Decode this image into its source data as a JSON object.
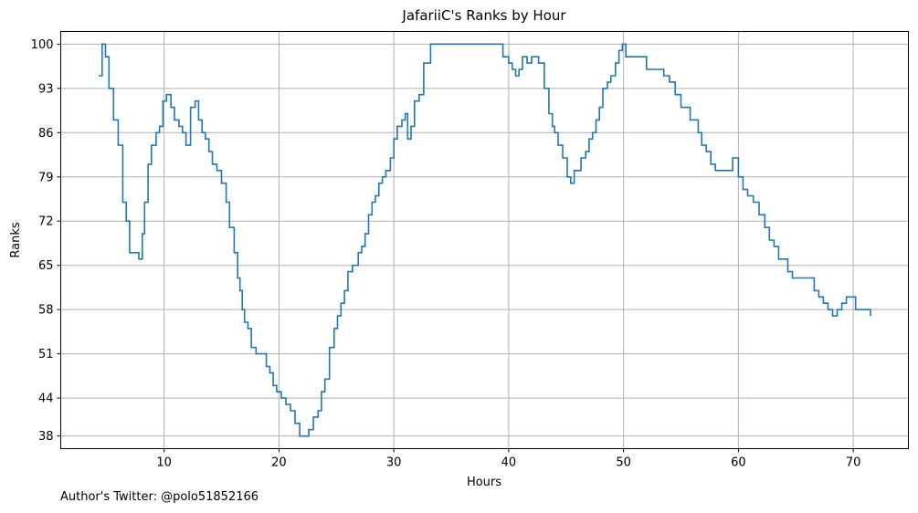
{
  "chart_data": {
    "type": "line",
    "step": true,
    "title": "JafariiC's Ranks by Hour",
    "xlabel": "Hours",
    "ylabel": "Ranks",
    "xlim": [
      1.0,
      74.8
    ],
    "ylim": [
      102,
      36.0
    ],
    "y_inverted": true,
    "grid": true,
    "x_ticks": [
      10,
      20,
      30,
      40,
      50,
      60,
      70
    ],
    "y_ticks": [
      38,
      44,
      51,
      58,
      65,
      72,
      79,
      86,
      93,
      100
    ],
    "line_color": "#1f77b4",
    "series": [
      {
        "x": [
          4.3,
          4.6,
          4.9,
          5.2,
          5.6,
          6.0,
          6.4,
          6.7,
          7.0,
          7.4,
          7.8,
          8.1,
          8.3,
          8.6,
          8.9,
          9.3,
          9.6,
          9.9,
          10.2,
          10.6,
          10.9,
          11.3,
          11.6,
          11.9,
          12.3,
          12.7,
          13.0,
          13.3,
          13.6,
          13.9,
          14.2,
          14.6,
          15.0,
          15.4,
          15.7,
          16.1,
          16.4,
          16.6,
          16.8,
          17.0,
          17.3,
          17.6,
          18.0,
          18.6,
          18.9,
          19.2,
          19.5,
          19.8,
          20.2,
          20.6,
          21.0,
          21.4,
          21.8,
          22.2,
          22.6,
          23.0,
          23.4,
          23.7,
          24.0,
          24.4,
          24.8,
          25.1,
          25.4,
          25.7,
          26.0,
          26.4,
          26.9,
          27.2,
          27.5,
          27.8,
          28.1,
          28.4,
          28.7,
          29.0,
          29.3,
          29.7,
          30.0,
          30.3,
          30.7,
          31.0,
          31.2,
          31.5,
          31.8,
          32.2,
          32.6,
          33.2,
          38.6,
          39.5,
          40.0,
          40.3,
          40.6,
          40.9,
          41.2,
          41.6,
          42.0,
          42.6,
          43.1,
          43.5,
          43.8,
          44.0,
          44.3,
          44.7,
          45.1,
          45.4,
          45.7,
          46.0,
          46.3,
          46.7,
          47.0,
          47.3,
          47.6,
          47.9,
          48.2,
          48.6,
          48.9,
          49.3,
          49.6,
          49.9,
          50.2,
          50.6,
          52.0,
          53.5,
          54.0,
          54.5,
          55.0,
          55.8,
          56.5,
          56.8,
          57.2,
          57.6,
          58.0,
          58.5,
          59.5,
          60.0,
          60.4,
          60.8,
          61.3,
          61.8,
          62.3,
          62.7,
          63.1,
          63.5,
          63.9,
          64.3,
          64.7,
          65.7,
          66.6,
          67.0,
          67.4,
          67.8,
          68.2,
          68.6,
          69.0,
          69.4,
          70.2,
          71.5
        ],
        "y": [
          95,
          100,
          98,
          93,
          88,
          84,
          75,
          72,
          67,
          67,
          66,
          70,
          75,
          81,
          84,
          86,
          87,
          91,
          92,
          90,
          88,
          87,
          86,
          84,
          90,
          91,
          88,
          86,
          85,
          83,
          81,
          80,
          78,
          75,
          71,
          67,
          63,
          61,
          58,
          56,
          55,
          52,
          51,
          51,
          49,
          48,
          46,
          45,
          44,
          43,
          42,
          40,
          38,
          38,
          39,
          41,
          42,
          45,
          47,
          52,
          55,
          57,
          59,
          61,
          64,
          65,
          67,
          68,
          70,
          73,
          75,
          76,
          78,
          79,
          80,
          82,
          85,
          87,
          88,
          89,
          85,
          87,
          91,
          92,
          97,
          100,
          100,
          98,
          97,
          96,
          95,
          96,
          98,
          97,
          98,
          97,
          93,
          89,
          87,
          86,
          84,
          82,
          79,
          78,
          80,
          80,
          82,
          83,
          85,
          86,
          88,
          90,
          93,
          94,
          95,
          97,
          99,
          100,
          98,
          98,
          96,
          95,
          94,
          92,
          90,
          88,
          86,
          84,
          83,
          81,
          80,
          80,
          82,
          79,
          77,
          76,
          75,
          73,
          71,
          69,
          68,
          66,
          66,
          64,
          63,
          63,
          61,
          60,
          59,
          58,
          57,
          58,
          59,
          60,
          58,
          57
        ]
      }
    ]
  },
  "footer": {
    "credit": "Author's Twitter: @polo51852166"
  }
}
